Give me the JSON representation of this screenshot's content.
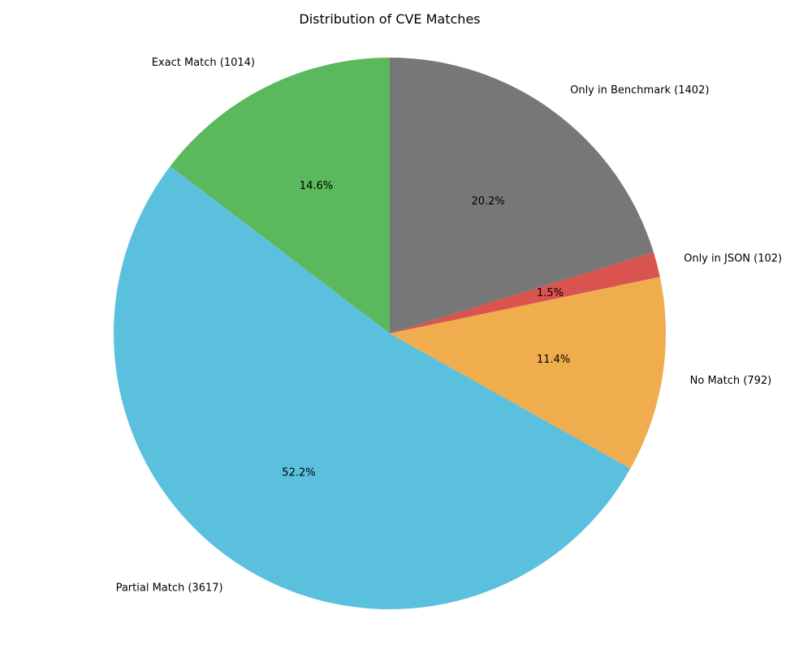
{
  "chart_data": {
    "type": "pie",
    "title": "Distribution of CVE Matches",
    "start_angle_deg": 90,
    "direction": "counterclockwise",
    "slices": [
      {
        "label": "Exact Match (1014)",
        "value": 1014,
        "percent_label": "14.6%",
        "color": "#5cb85c"
      },
      {
        "label": "Partial Match (3617)",
        "value": 3617,
        "percent_label": "52.2%",
        "color": "#5bc0de"
      },
      {
        "label": "No Match (792)",
        "value": 792,
        "percent_label": "11.4%",
        "color": "#f0ad4e"
      },
      {
        "label": "Only in JSON (102)",
        "value": 102,
        "percent_label": "1.5%",
        "color": "#d9534f"
      },
      {
        "label": "Only in Benchmark (1402)",
        "value": 1402,
        "percent_label": "20.2%",
        "color": "#777777"
      }
    ]
  }
}
